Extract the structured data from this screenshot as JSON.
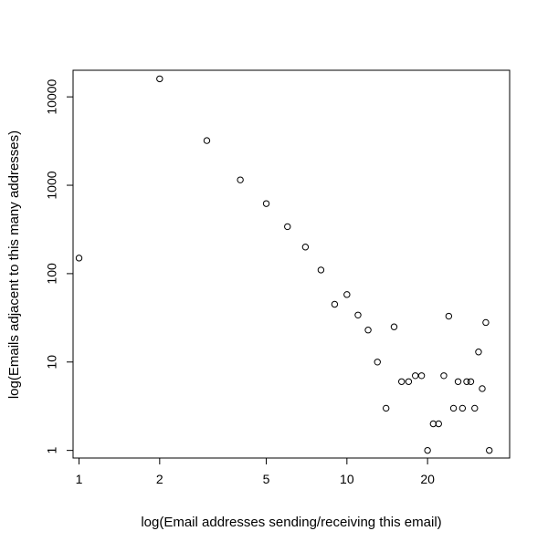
{
  "chart_data": {
    "type": "scatter",
    "title": "",
    "xlabel": "log(Email addresses sending/receiving this email)",
    "ylabel": "log(Emails adjacent to this many addresses)",
    "x_scale": "log",
    "y_scale": "log",
    "xlim": [
      0.95,
      40.5
    ],
    "ylim": [
      0.82,
      20000
    ],
    "x_ticks": [
      1,
      2,
      5,
      10,
      20
    ],
    "x_tick_labels": [
      "1",
      "2",
      "5",
      "10",
      "20"
    ],
    "y_ticks": [
      1,
      10,
      100,
      1000,
      10000
    ],
    "y_tick_labels": [
      "1",
      "10",
      "100",
      "1000",
      "10000"
    ],
    "grid": false,
    "legend": "none",
    "points": [
      {
        "x": 1,
        "y": 150
      },
      {
        "x": 2,
        "y": 16000
      },
      {
        "x": 3,
        "y": 3200
      },
      {
        "x": 4,
        "y": 1150
      },
      {
        "x": 5,
        "y": 620
      },
      {
        "x": 6,
        "y": 340
      },
      {
        "x": 7,
        "y": 200
      },
      {
        "x": 8,
        "y": 110
      },
      {
        "x": 9,
        "y": 45
      },
      {
        "x": 10,
        "y": 58
      },
      {
        "x": 11,
        "y": 34
      },
      {
        "x": 12,
        "y": 23
      },
      {
        "x": 13,
        "y": 10
      },
      {
        "x": 14,
        "y": 3
      },
      {
        "x": 15,
        "y": 25
      },
      {
        "x": 16,
        "y": 6
      },
      {
        "x": 17,
        "y": 6
      },
      {
        "x": 18,
        "y": 7
      },
      {
        "x": 19,
        "y": 7
      },
      {
        "x": 20,
        "y": 1
      },
      {
        "x": 21,
        "y": 2
      },
      {
        "x": 22,
        "y": 2
      },
      {
        "x": 23,
        "y": 7
      },
      {
        "x": 24,
        "y": 33
      },
      {
        "x": 25,
        "y": 3
      },
      {
        "x": 26,
        "y": 6
      },
      {
        "x": 27,
        "y": 3
      },
      {
        "x": 28,
        "y": 6
      },
      {
        "x": 29,
        "y": 6
      },
      {
        "x": 30,
        "y": 3
      },
      {
        "x": 31,
        "y": 13
      },
      {
        "x": 32,
        "y": 5
      },
      {
        "x": 33,
        "y": 28
      },
      {
        "x": 34,
        "y": 1
      }
    ]
  }
}
